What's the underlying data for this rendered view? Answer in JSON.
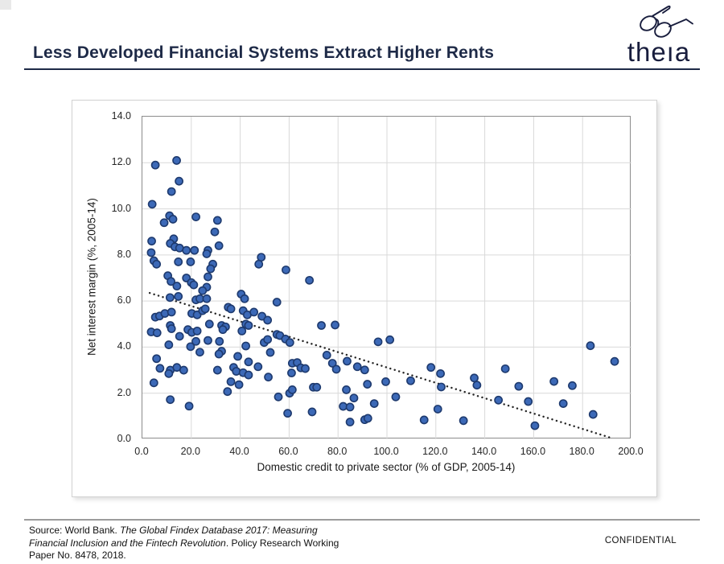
{
  "header": {
    "title": "Less Developed Financial Systems Extract Higher Rents",
    "title_color": "#1e2a47",
    "rule_color": "#1e2a47",
    "logo": {
      "wordmark": "theıa",
      "icon": "eyeglasses-icon",
      "color": "#181d3d"
    }
  },
  "chart_data": {
    "type": "scatter",
    "title": "",
    "xlabel": "Domestic credit to private sector (% of GDP, 2005-14)",
    "ylabel": "Net interest margin (%, 2005-14)",
    "xlim": [
      0,
      200
    ],
    "ylim": [
      0,
      14
    ],
    "x_tick_labels": [
      "0.0",
      "20.0",
      "40.0",
      "60.0",
      "80.0",
      "100.0",
      "120.0",
      "140.0",
      "160.0",
      "180.0",
      "200.0"
    ],
    "y_tick_labels": [
      "0.0",
      "2.0",
      "4.0",
      "6.0",
      "8.0",
      "10.0",
      "12.0",
      "14.0"
    ],
    "grid": true,
    "grid_color": "#d9d9d9",
    "axis_border_color": "#8c8c8c",
    "point_fill": "#3c69b7",
    "point_border": "#1e3a6e",
    "trendline": {
      "style": "dotted",
      "color": "#262626",
      "x1": 3,
      "y1": 6.35,
      "x2": 192,
      "y2": 0.05
    },
    "points": [
      [
        5.3,
        11.9
      ],
      [
        14.0,
        12.1
      ],
      [
        15.0,
        11.2
      ],
      [
        11.9,
        10.75
      ],
      [
        4.0,
        10.2
      ],
      [
        11.1,
        9.7
      ],
      [
        12.5,
        9.55
      ],
      [
        8.9,
        9.4
      ],
      [
        21.9,
        9.65
      ],
      [
        30.7,
        9.5
      ],
      [
        29.6,
        9.0
      ],
      [
        3.8,
        8.6
      ],
      [
        12.8,
        8.7
      ],
      [
        11.4,
        8.5
      ],
      [
        13.3,
        8.35
      ],
      [
        15.2,
        8.3
      ],
      [
        18.0,
        8.2
      ],
      [
        21.3,
        8.2
      ],
      [
        26.8,
        8.2
      ],
      [
        26.3,
        8.05
      ],
      [
        31.3,
        8.4
      ],
      [
        3.6,
        8.1
      ],
      [
        4.7,
        7.75
      ],
      [
        5.8,
        7.6
      ],
      [
        14.7,
        7.7
      ],
      [
        19.7,
        7.7
      ],
      [
        28.8,
        7.6
      ],
      [
        27.9,
        7.4
      ],
      [
        48.6,
        7.9
      ],
      [
        47.6,
        7.6
      ],
      [
        58.7,
        7.35
      ],
      [
        10.4,
        7.1
      ],
      [
        11.7,
        6.85
      ],
      [
        18.0,
        7.0
      ],
      [
        14.1,
        6.65
      ],
      [
        20.0,
        6.8
      ],
      [
        21.0,
        6.7
      ],
      [
        26.8,
        7.05
      ],
      [
        26.3,
        6.6
      ],
      [
        24.6,
        6.45
      ],
      [
        68.3,
        6.9
      ],
      [
        11.3,
        6.15
      ],
      [
        14.7,
        6.2
      ],
      [
        21.9,
        6.05
      ],
      [
        23.5,
        6.1
      ],
      [
        26.3,
        6.1
      ],
      [
        40.4,
        6.3
      ],
      [
        41.8,
        6.1
      ],
      [
        55.0,
        5.95
      ],
      [
        5.3,
        5.3
      ],
      [
        7.0,
        5.35
      ],
      [
        9.2,
        5.46
      ],
      [
        11.9,
        5.52
      ],
      [
        20.2,
        5.46
      ],
      [
        22.4,
        5.4
      ],
      [
        24.6,
        5.58
      ],
      [
        25.7,
        5.66
      ],
      [
        35.1,
        5.73
      ],
      [
        36.2,
        5.66
      ],
      [
        41.2,
        5.58
      ],
      [
        42.9,
        5.4
      ],
      [
        45.6,
        5.52
      ],
      [
        48.9,
        5.34
      ],
      [
        51.2,
        5.17
      ],
      [
        42.3,
        5.0
      ],
      [
        43.4,
        4.94
      ],
      [
        27.4,
        5.0
      ],
      [
        3.6,
        4.66
      ],
      [
        6.0,
        4.62
      ],
      [
        11.4,
        4.94
      ],
      [
        11.9,
        4.8
      ],
      [
        18.6,
        4.76
      ],
      [
        20.2,
        4.64
      ],
      [
        22.4,
        4.7
      ],
      [
        32.4,
        4.94
      ],
      [
        34.0,
        4.88
      ],
      [
        32.9,
        4.76
      ],
      [
        40.7,
        4.7
      ],
      [
        49.8,
        4.2
      ],
      [
        51.2,
        4.33
      ],
      [
        55.0,
        4.55
      ],
      [
        56.2,
        4.5
      ],
      [
        58.5,
        4.35
      ],
      [
        60.3,
        4.2
      ],
      [
        73.2,
        4.94
      ],
      [
        78.8,
        4.96
      ],
      [
        96.4,
        4.23
      ],
      [
        101.2,
        4.32
      ],
      [
        10.8,
        4.1
      ],
      [
        15.2,
        4.47
      ],
      [
        19.7,
        4.02
      ],
      [
        21.9,
        4.25
      ],
      [
        26.8,
        4.29
      ],
      [
        31.5,
        4.25
      ],
      [
        42.3,
        4.05
      ],
      [
        183.2,
        4.06
      ],
      [
        5.8,
        3.5
      ],
      [
        23.5,
        3.78
      ],
      [
        32.4,
        3.82
      ],
      [
        52.3,
        3.77
      ],
      [
        31.3,
        3.7
      ],
      [
        39.0,
        3.6
      ],
      [
        43.4,
        3.36
      ],
      [
        47.3,
        3.15
      ],
      [
        61.3,
        3.3
      ],
      [
        63.3,
        3.33
      ],
      [
        64.8,
        3.1
      ],
      [
        66.6,
        3.07
      ],
      [
        75.4,
        3.65
      ],
      [
        77.7,
        3.3
      ],
      [
        79.3,
        3.04
      ],
      [
        83.7,
        3.39
      ],
      [
        87.9,
        3.15
      ],
      [
        90.9,
        3.01
      ],
      [
        118.0,
        3.12
      ],
      [
        148.4,
        3.06
      ],
      [
        193.1,
        3.38
      ],
      [
        7.2,
        3.08
      ],
      [
        11.4,
        3.0
      ],
      [
        14.1,
        3.12
      ],
      [
        16.9,
        3.0
      ],
      [
        30.7,
        3.0
      ],
      [
        37.3,
        3.12
      ],
      [
        38.4,
        2.95
      ],
      [
        10.8,
        2.85
      ],
      [
        41.2,
        2.89
      ],
      [
        43.4,
        2.79
      ],
      [
        51.5,
        2.7
      ],
      [
        61.0,
        2.88
      ],
      [
        36.2,
        2.5
      ],
      [
        39.5,
        2.37
      ],
      [
        34.8,
        2.07
      ],
      [
        99.5,
        2.5
      ],
      [
        92.0,
        2.39
      ],
      [
        109.7,
        2.54
      ],
      [
        121.9,
        2.85
      ],
      [
        122.2,
        2.27
      ],
      [
        135.7,
        2.66
      ],
      [
        136.8,
        2.35
      ],
      [
        69.9,
        2.26
      ],
      [
        71.3,
        2.26
      ],
      [
        83.4,
        2.15
      ],
      [
        153.9,
        2.3
      ],
      [
        168.3,
        2.51
      ],
      [
        175.8,
        2.33
      ],
      [
        4.7,
        2.45
      ],
      [
        60.2,
        2.0
      ],
      [
        61.3,
        2.15
      ],
      [
        11.4,
        1.72
      ],
      [
        19.1,
        1.44
      ],
      [
        55.6,
        1.84
      ],
      [
        59.4,
        1.13
      ],
      [
        86.5,
        1.79
      ],
      [
        82.1,
        1.43
      ],
      [
        84.9,
        1.4
      ],
      [
        94.8,
        1.55
      ],
      [
        69.4,
        1.19
      ],
      [
        103.6,
        1.84
      ],
      [
        120.8,
        1.31
      ],
      [
        145.6,
        1.7
      ],
      [
        157.8,
        1.64
      ],
      [
        172.1,
        1.55
      ],
      [
        184.3,
        1.08
      ],
      [
        90.9,
        0.85
      ],
      [
        92.2,
        0.91
      ],
      [
        84.9,
        0.75
      ],
      [
        115.2,
        0.84
      ],
      [
        131.3,
        0.81
      ],
      [
        160.5,
        0.59
      ]
    ]
  },
  "footer": {
    "source_lines": [
      {
        "segments": [
          {
            "text": "Source: World Bank. ",
            "italic": false
          },
          {
            "text": "The Global Findex Database 2017: Measuring",
            "italic": true
          }
        ]
      },
      {
        "segments": [
          {
            "text": "Financial Inclusion and the Fintech Revolution",
            "italic": true
          },
          {
            "text": ". Policy Research Working",
            "italic": false
          }
        ]
      },
      {
        "segments": [
          {
            "text": "Paper No. 8478, 2018.",
            "italic": false
          }
        ]
      }
    ],
    "confidential": "CONFIDENTIAL"
  }
}
